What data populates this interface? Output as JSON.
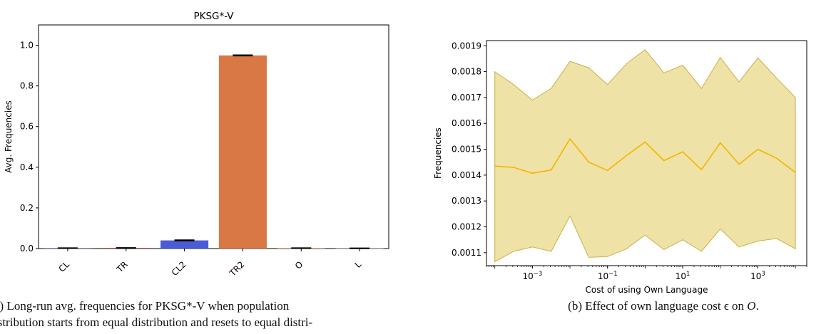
{
  "chart_data": [
    {
      "type": "bar",
      "title": "PKSG*-V",
      "xlabel": "",
      "ylabel": "Avg. Frequencies",
      "categories": [
        "CL",
        "TR",
        "CL2",
        "TR2",
        "O",
        "L"
      ],
      "values": [
        0.002,
        0.003,
        0.04,
        0.95,
        0.002,
        0.001
      ],
      "errors": [
        0.001,
        0.001,
        0.002,
        0.002,
        0.001,
        0.001
      ],
      "colors": [
        "#4052cc",
        "#c0392b",
        "#4a5bd6",
        "#d97845",
        "#e07b39",
        "#888888"
      ],
      "ylim": [
        0,
        1.1
      ],
      "yticks": [
        0.0,
        0.2,
        0.4,
        0.6,
        0.8,
        1.0
      ],
      "ytick_labels": [
        "0.0",
        "0.2",
        "0.4",
        "0.6",
        "0.8",
        "1.0"
      ],
      "grid": false
    },
    {
      "type": "area",
      "title": "",
      "xlabel": "Cost of using Own Language",
      "ylabel": "Frequencies",
      "xscale": "log",
      "xlim": [
        6e-05,
        20000
      ],
      "ylim": [
        0.00105,
        0.00192
      ],
      "x": [
        0.0001,
        0.000316,
        0.001,
        0.00316,
        0.01,
        0.0316,
        0.1,
        0.316,
        1,
        3.16,
        10,
        31.6,
        100,
        316,
        1000,
        3160,
        10000
      ],
      "series": [
        {
          "mean": [
            0.001435,
            0.00143,
            0.001407,
            0.00142,
            0.00154,
            0.00145,
            0.001418,
            0.001475,
            0.001528,
            0.001456,
            0.00149,
            0.001421,
            0.001525,
            0.001442,
            0.0015,
            0.001465,
            0.00141
          ],
          "upper": [
            0.0018,
            0.00175,
            0.00169,
            0.001735,
            0.00184,
            0.001815,
            0.00175,
            0.00183,
            0.001885,
            0.001795,
            0.001825,
            0.001735,
            0.001855,
            0.00176,
            0.001853,
            0.001775,
            0.0017
          ],
          "lower": [
            0.001065,
            0.001105,
            0.001122,
            0.001105,
            0.001242,
            0.001082,
            0.001085,
            0.001115,
            0.001168,
            0.001112,
            0.00115,
            0.001105,
            0.001192,
            0.001122,
            0.001145,
            0.001155,
            0.001115
          ],
          "line_color": "#f4b400",
          "fill_color": "#efe2a6",
          "edge_color": "#c8b14a"
        }
      ],
      "xticks": [
        0.001,
        0.1,
        10,
        1000
      ],
      "xtick_labels": [
        "10",
        "10",
        "10",
        "10"
      ],
      "xtick_exponents": [
        "−3",
        "−1",
        "1",
        "3"
      ],
      "yticks": [
        0.0011,
        0.0012,
        0.0013,
        0.0014,
        0.0015,
        0.0016,
        0.0017,
        0.0018,
        0.0019
      ],
      "ytick_labels": [
        "0.0011",
        "0.0012",
        "0.0013",
        "0.0014",
        "0.0015",
        "0.0016",
        "0.0017",
        "0.0018",
        "0.0019"
      ],
      "grid": false
    }
  ],
  "captions": {
    "a": "a) Long-run avg.  frequencies for PKSG*-V when population",
    "a2": "istribution starts from equal distribution and resets to equal distri-",
    "b": "(b) Effect of own language cost ϵ on ",
    "b_var": "O",
    "b_end": "."
  }
}
